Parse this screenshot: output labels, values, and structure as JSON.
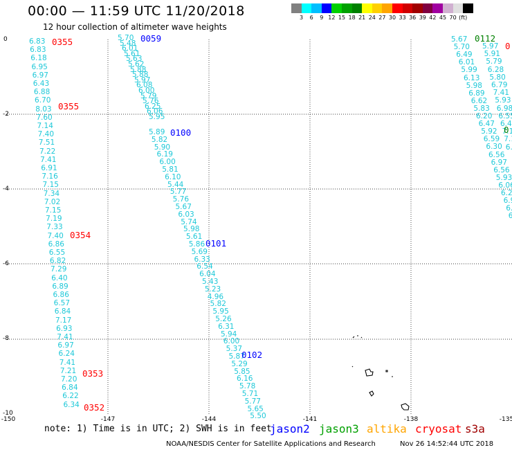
{
  "header": {
    "title": "00:00 — 11:59 UTC 11/20/2018",
    "subtitle": "12 hour collection of altimeter wave heights"
  },
  "color_scale": {
    "colors": [
      "#808080",
      "#00ffff",
      "#00bfff",
      "#0000ff",
      "#00d000",
      "#00a000",
      "#008000",
      "#ffff00",
      "#ffd000",
      "#ffa500",
      "#ff0000",
      "#d00000",
      "#a00000",
      "#800040",
      "#a000a0",
      "#d0b0d0",
      "#e0e0e0",
      "#000000"
    ],
    "labels": [
      "3",
      "6",
      "9",
      "12",
      "15",
      "18",
      "21",
      "24",
      "27",
      "30",
      "33",
      "36",
      "39",
      "42",
      "45",
      "70",
      "(ft)"
    ]
  },
  "axes": {
    "x_ticks": [
      "-150",
      "-147",
      "-144",
      "-141",
      "-138",
      "-135"
    ],
    "y_ticks": [
      "0",
      "-2",
      "-4",
      "-6",
      "-8",
      "-10"
    ]
  },
  "tracks": {
    "left": [
      "6.83",
      "6.83",
      "6.18",
      "6.95",
      "6.97",
      "6.43",
      "6.88",
      "6.70",
      "8.03",
      "7.60",
      "7.14",
      "7.40",
      "7.51",
      "7.22",
      "7.41",
      "6.91",
      "7.16",
      "7.15",
      "7.34",
      "7.02",
      "7.15",
      "7.19",
      "7.33",
      "7.40",
      "6.86",
      "6.55",
      "6.82",
      "7.29",
      "6.40",
      "6.89",
      "6.86",
      "6.57",
      "6.84",
      "7.17",
      "6.93",
      "7.41",
      "6.97",
      "6.24",
      "7.41",
      "7.21",
      "7.20",
      "6.84",
      "6.22",
      "6.34"
    ],
    "diag_top": [
      "5.70",
      "5.48",
      "6.01",
      "5.61",
      "5.63",
      "5.62",
      "5.88",
      "5.88",
      "5.97",
      "6.08",
      "6.00",
      "5.79",
      "5.76",
      "6.25",
      "6.06",
      "5.95"
    ],
    "diag_mid": [
      "5.89",
      "5.82",
      "5.90",
      "6.19",
      "6.00",
      "5.81",
      "6.10",
      "5.44",
      "5.77",
      "5.76",
      "5.67",
      "6.03",
      "5.74",
      "5.98",
      "5.61",
      "5.86",
      "5.69",
      "6.33",
      "6.54",
      "6.04",
      "5.43",
      "5.23",
      "4.96",
      "5.82",
      "5.95",
      "5.26",
      "6.31",
      "5.94",
      "6.00",
      "5.37",
      "5.87",
      "5.29",
      "5.85",
      "6.16",
      "5.78",
      "5.71",
      "5.77",
      "5.65",
      "5.50"
    ],
    "right_a": [
      "5.67",
      "5.70",
      "6.49",
      "6.01",
      "5.99",
      "6.13",
      "5.98",
      "6.89",
      "6.62",
      "5.83",
      "6.20",
      "6.47",
      "5.92",
      "6.59",
      "6.30",
      "6.56",
      "6.97",
      "6.56",
      "5.93",
      "6.06",
      "6.20",
      "6.9",
      "6.9",
      "6"
    ],
    "right_b": [
      "5.97",
      "5.91",
      "5.79",
      "6.28",
      "5.80",
      "6.79",
      "7.41",
      "5.93",
      "6.98",
      "6.55",
      "6.47",
      "7.1",
      "7.1",
      "6.6"
    ]
  },
  "time_labels": [
    {
      "text": "0355",
      "color": "#ff0000"
    },
    {
      "text": "0059",
      "color": "#0000ff"
    },
    {
      "text": "0112",
      "color": "#008000"
    },
    {
      "text": "0",
      "color": "#ff0000"
    },
    {
      "text": "0355",
      "color": "#ff0000"
    },
    {
      "text": "0100",
      "color": "#0000ff"
    },
    {
      "text": "0354",
      "color": "#ff0000"
    },
    {
      "text": "0101",
      "color": "#0000ff"
    },
    {
      "text": "0102",
      "color": "#0000ff"
    },
    {
      "text": "0353",
      "color": "#ff0000"
    },
    {
      "text": "0352",
      "color": "#ff0000"
    },
    {
      "text": "0",
      "color": "#008000"
    }
  ],
  "note": "note: 1) Time is in UTC; 2) SWH is in feet",
  "satellites": [
    {
      "name": "jason2",
      "color": "#0000ff"
    },
    {
      "name": "jason3",
      "color": "#00a000"
    },
    {
      "name": "altika",
      "color": "#ffa500"
    },
    {
      "name": "cryosat",
      "color": "#ff0000"
    },
    {
      "name": "s3a",
      "color": "#a00000"
    }
  ],
  "footer": {
    "credit": "NOAA/NESDIS Center for Satellite Applications and Research",
    "timestamp": "Nov 26 14:52:44 UTC 2018"
  }
}
